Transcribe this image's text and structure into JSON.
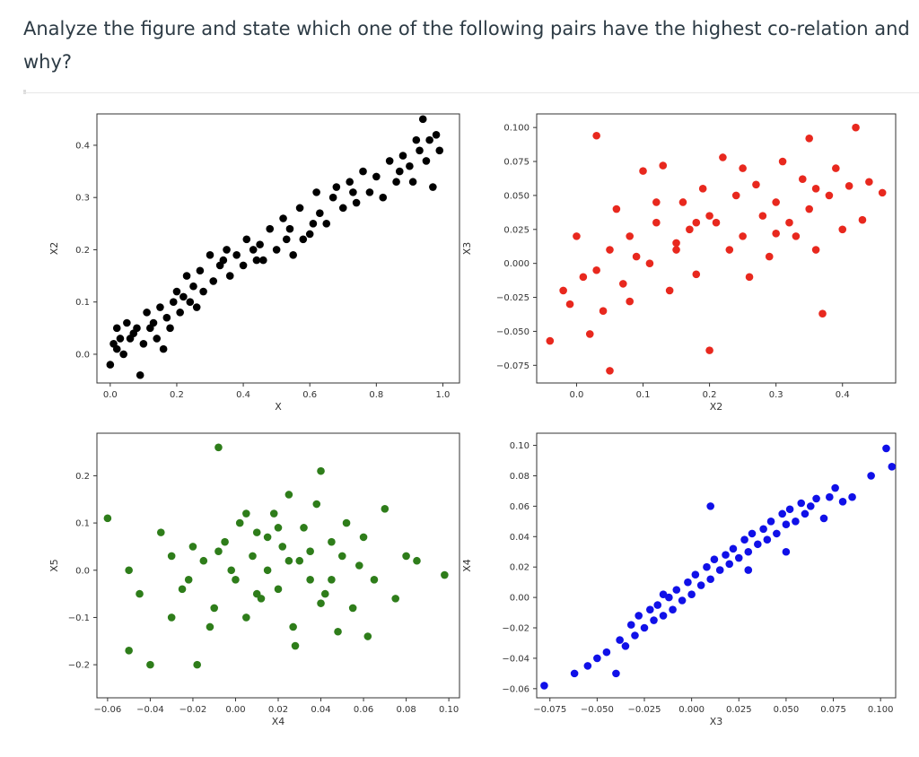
{
  "question": {
    "text": "Analyze the figure and state which one of the following pairs have the highest co-relation and why?"
  },
  "colors": {
    "panel1": "#000000",
    "panel2": "#e8281e",
    "panel3": "#2e7d1a",
    "panel4": "#1010e8",
    "frame": "#333333"
  },
  "chart_data": [
    {
      "type": "scatter",
      "xlabel": "X",
      "ylabel": "X2",
      "xlim": [
        -0.04,
        1.05
      ],
      "ylim": [
        -0.055,
        0.46
      ],
      "xticks": [
        "0.0",
        "0.2",
        "0.4",
        "0.6",
        "0.8",
        "1.0"
      ],
      "yticks": [
        "0.0",
        "0.1",
        "0.2",
        "0.3",
        "0.4"
      ],
      "color": "#000000",
      "points": [
        [
          0.0,
          -0.02
        ],
        [
          0.01,
          0.02
        ],
        [
          0.02,
          0.05
        ],
        [
          0.03,
          0.03
        ],
        [
          0.04,
          0.0
        ],
        [
          0.05,
          0.06
        ],
        [
          0.06,
          0.03
        ],
        [
          0.08,
          0.05
        ],
        [
          0.09,
          -0.04
        ],
        [
          0.1,
          0.02
        ],
        [
          0.11,
          0.08
        ],
        [
          0.12,
          0.05
        ],
        [
          0.13,
          0.06
        ],
        [
          0.14,
          0.03
        ],
        [
          0.15,
          0.09
        ],
        [
          0.16,
          0.01
        ],
        [
          0.17,
          0.07
        ],
        [
          0.19,
          0.1
        ],
        [
          0.2,
          0.12
        ],
        [
          0.21,
          0.08
        ],
        [
          0.22,
          0.11
        ],
        [
          0.23,
          0.15
        ],
        [
          0.25,
          0.13
        ],
        [
          0.26,
          0.09
        ],
        [
          0.27,
          0.16
        ],
        [
          0.28,
          0.12
        ],
        [
          0.3,
          0.19
        ],
        [
          0.31,
          0.14
        ],
        [
          0.33,
          0.17
        ],
        [
          0.35,
          0.2
        ],
        [
          0.36,
          0.15
        ],
        [
          0.38,
          0.19
        ],
        [
          0.4,
          0.17
        ],
        [
          0.41,
          0.22
        ],
        [
          0.43,
          0.2
        ],
        [
          0.45,
          0.21
        ],
        [
          0.46,
          0.18
        ],
        [
          0.48,
          0.24
        ],
        [
          0.5,
          0.2
        ],
        [
          0.52,
          0.26
        ],
        [
          0.54,
          0.24
        ],
        [
          0.55,
          0.19
        ],
        [
          0.57,
          0.28
        ],
        [
          0.58,
          0.22
        ],
        [
          0.6,
          0.23
        ],
        [
          0.62,
          0.31
        ],
        [
          0.63,
          0.27
        ],
        [
          0.65,
          0.25
        ],
        [
          0.67,
          0.3
        ],
        [
          0.68,
          0.32
        ],
        [
          0.7,
          0.28
        ],
        [
          0.72,
          0.33
        ],
        [
          0.74,
          0.29
        ],
        [
          0.76,
          0.35
        ],
        [
          0.78,
          0.31
        ],
        [
          0.8,
          0.34
        ],
        [
          0.82,
          0.3
        ],
        [
          0.84,
          0.37
        ],
        [
          0.86,
          0.33
        ],
        [
          0.88,
          0.38
        ],
        [
          0.9,
          0.36
        ],
        [
          0.91,
          0.33
        ],
        [
          0.93,
          0.39
        ],
        [
          0.94,
          0.45
        ],
        [
          0.95,
          0.37
        ],
        [
          0.96,
          0.41
        ],
        [
          0.97,
          0.32
        ],
        [
          0.98,
          0.42
        ],
        [
          0.99,
          0.39
        ],
        [
          0.92,
          0.41
        ],
        [
          0.87,
          0.35
        ],
        [
          0.73,
          0.31
        ],
        [
          0.61,
          0.25
        ],
        [
          0.53,
          0.22
        ],
        [
          0.44,
          0.18
        ],
        [
          0.34,
          0.18
        ],
        [
          0.24,
          0.1
        ],
        [
          0.18,
          0.05
        ],
        [
          0.07,
          0.04
        ],
        [
          0.02,
          0.01
        ]
      ]
    },
    {
      "type": "scatter",
      "xlabel": "X2",
      "ylabel": "X3",
      "xlim": [
        -0.06,
        0.48
      ],
      "ylim": [
        -0.088,
        0.11
      ],
      "xticks": [
        "0.0",
        "0.1",
        "0.2",
        "0.3",
        "0.4"
      ],
      "yticks": [
        "0.100",
        "0.075",
        "0.050",
        "0.025",
        "0.000",
        "−0.025",
        "−0.050",
        "−0.075"
      ],
      "color": "#e8281e",
      "points": [
        [
          -0.04,
          -0.057
        ],
        [
          -0.02,
          -0.02
        ],
        [
          -0.01,
          -0.03
        ],
        [
          0.0,
          0.02
        ],
        [
          0.01,
          -0.01
        ],
        [
          0.02,
          -0.052
        ],
        [
          0.03,
          0.094
        ],
        [
          0.04,
          -0.035
        ],
        [
          0.05,
          -0.079
        ],
        [
          0.05,
          0.01
        ],
        [
          0.06,
          0.04
        ],
        [
          0.07,
          -0.015
        ],
        [
          0.08,
          0.02
        ],
        [
          0.09,
          0.005
        ],
        [
          0.1,
          0.068
        ],
        [
          0.11,
          0.0
        ],
        [
          0.12,
          0.03
        ],
        [
          0.13,
          0.072
        ],
        [
          0.14,
          -0.02
        ],
        [
          0.15,
          0.015
        ],
        [
          0.16,
          0.045
        ],
        [
          0.17,
          0.025
        ],
        [
          0.18,
          -0.008
        ],
        [
          0.19,
          0.055
        ],
        [
          0.2,
          -0.064
        ],
        [
          0.21,
          0.03
        ],
        [
          0.22,
          0.078
        ],
        [
          0.23,
          0.01
        ],
        [
          0.24,
          0.05
        ],
        [
          0.25,
          0.02
        ],
        [
          0.26,
          -0.01
        ],
        [
          0.27,
          0.058
        ],
        [
          0.28,
          0.035
        ],
        [
          0.29,
          0.005
        ],
        [
          0.3,
          0.045
        ],
        [
          0.31,
          0.075
        ],
        [
          0.32,
          0.03
        ],
        [
          0.33,
          0.02
        ],
        [
          0.34,
          0.062
        ],
        [
          0.35,
          0.04
        ],
        [
          0.36,
          0.01
        ],
        [
          0.37,
          -0.037
        ],
        [
          0.38,
          0.05
        ],
        [
          0.39,
          0.07
        ],
        [
          0.4,
          0.025
        ],
        [
          0.41,
          0.057
        ],
        [
          0.42,
          0.1
        ],
        [
          0.44,
          0.06
        ],
        [
          0.46,
          0.052
        ],
        [
          0.43,
          0.032
        ],
        [
          0.35,
          0.092
        ],
        [
          0.3,
          0.022
        ],
        [
          0.25,
          0.07
        ],
        [
          0.18,
          0.03
        ],
        [
          0.12,
          0.045
        ],
        [
          0.08,
          -0.028
        ],
        [
          0.03,
          -0.005
        ],
        [
          0.15,
          0.01
        ],
        [
          0.2,
          0.035
        ],
        [
          0.36,
          0.055
        ]
      ]
    },
    {
      "type": "scatter",
      "xlabel": "X4",
      "ylabel": "X5",
      "xlim": [
        -0.065,
        0.105
      ],
      "ylim": [
        -0.27,
        0.29
      ],
      "xticks": [
        "−0.06",
        "−0.04",
        "−0.02",
        "0.00",
        "0.02",
        "0.04",
        "0.06",
        "0.08",
        "0.10"
      ],
      "yticks": [
        "0.2",
        "0.1",
        "0.0",
        "−0.1",
        "−0.2"
      ],
      "color": "#2e7d1a",
      "points": [
        [
          -0.06,
          0.11
        ],
        [
          -0.05,
          0.0
        ],
        [
          -0.05,
          -0.17
        ],
        [
          -0.045,
          -0.05
        ],
        [
          -0.04,
          -0.2
        ],
        [
          -0.035,
          0.08
        ],
        [
          -0.03,
          -0.1
        ],
        [
          -0.025,
          -0.04
        ],
        [
          -0.02,
          0.05
        ],
        [
          -0.018,
          -0.2
        ],
        [
          -0.015,
          0.02
        ],
        [
          -0.01,
          -0.08
        ],
        [
          -0.008,
          0.26
        ],
        [
          -0.005,
          0.06
        ],
        [
          0.0,
          -0.02
        ],
        [
          0.002,
          0.1
        ],
        [
          0.005,
          -0.1
        ],
        [
          0.008,
          0.03
        ],
        [
          0.01,
          0.08
        ],
        [
          0.012,
          -0.06
        ],
        [
          0.015,
          0.0
        ],
        [
          0.018,
          0.12
        ],
        [
          0.02,
          -0.04
        ],
        [
          0.022,
          0.05
        ],
        [
          0.025,
          0.16
        ],
        [
          0.027,
          -0.12
        ],
        [
          0.03,
          0.02
        ],
        [
          0.032,
          0.09
        ],
        [
          0.035,
          -0.02
        ],
        [
          0.038,
          0.14
        ],
        [
          0.04,
          0.21
        ],
        [
          0.042,
          -0.05
        ],
        [
          0.045,
          0.06
        ],
        [
          0.048,
          -0.13
        ],
        [
          0.05,
          0.03
        ],
        [
          0.052,
          0.1
        ],
        [
          0.055,
          -0.08
        ],
        [
          0.058,
          0.01
        ],
        [
          0.06,
          0.07
        ],
        [
          0.065,
          -0.02
        ],
        [
          0.07,
          0.13
        ],
        [
          0.075,
          -0.06
        ],
        [
          0.08,
          0.03
        ],
        [
          0.085,
          0.02
        ],
        [
          0.098,
          -0.01
        ],
        [
          -0.03,
          0.03
        ],
        [
          -0.012,
          -0.12
        ],
        [
          0.028,
          -0.16
        ],
        [
          0.015,
          0.07
        ],
        [
          0.035,
          0.04
        ],
        [
          0.045,
          -0.02
        ],
        [
          -0.002,
          0.0
        ],
        [
          0.01,
          -0.05
        ],
        [
          0.025,
          0.02
        ],
        [
          0.005,
          0.12
        ],
        [
          0.062,
          -0.14
        ],
        [
          -0.022,
          -0.02
        ],
        [
          0.04,
          -0.07
        ],
        [
          0.02,
          0.09
        ],
        [
          -0.008,
          0.04
        ]
      ]
    },
    {
      "type": "scatter",
      "xlabel": "X3",
      "ylabel": "X4",
      "xlim": [
        -0.082,
        0.108
      ],
      "ylim": [
        -0.066,
        0.108
      ],
      "xticks": [
        "−0.075",
        "−0.050",
        "−0.025",
        "0.000",
        "0.025",
        "0.050",
        "0.075",
        "0.100"
      ],
      "yticks": [
        "0.10",
        "0.08",
        "0.06",
        "0.04",
        "0.02",
        "0.00",
        "−0.02",
        "−0.04",
        "−0.06"
      ],
      "color": "#1010e8",
      "points": [
        [
          -0.078,
          -0.058
        ],
        [
          -0.062,
          -0.05
        ],
        [
          -0.055,
          -0.045
        ],
        [
          -0.05,
          -0.04
        ],
        [
          -0.045,
          -0.036
        ],
        [
          -0.04,
          -0.05
        ],
        [
          -0.038,
          -0.028
        ],
        [
          -0.035,
          -0.032
        ],
        [
          -0.032,
          -0.018
        ],
        [
          -0.03,
          -0.025
        ],
        [
          -0.028,
          -0.012
        ],
        [
          -0.025,
          -0.02
        ],
        [
          -0.022,
          -0.008
        ],
        [
          -0.02,
          -0.015
        ],
        [
          -0.018,
          -0.005
        ],
        [
          -0.015,
          -0.012
        ],
        [
          -0.012,
          0.0
        ],
        [
          -0.01,
          -0.008
        ],
        [
          -0.008,
          0.005
        ],
        [
          -0.005,
          -0.002
        ],
        [
          -0.002,
          0.01
        ],
        [
          0.0,
          0.002
        ],
        [
          0.002,
          0.015
        ],
        [
          0.005,
          0.008
        ],
        [
          0.008,
          0.02
        ],
        [
          0.01,
          0.012
        ],
        [
          0.012,
          0.025
        ],
        [
          0.015,
          0.018
        ],
        [
          0.018,
          0.028
        ],
        [
          0.02,
          0.022
        ],
        [
          0.022,
          0.032
        ],
        [
          0.025,
          0.026
        ],
        [
          0.028,
          0.038
        ],
        [
          0.03,
          0.03
        ],
        [
          0.032,
          0.042
        ],
        [
          0.035,
          0.035
        ],
        [
          0.038,
          0.045
        ],
        [
          0.04,
          0.038
        ],
        [
          0.042,
          0.05
        ],
        [
          0.045,
          0.042
        ],
        [
          0.048,
          0.055
        ],
        [
          0.05,
          0.048
        ],
        [
          0.052,
          0.058
        ],
        [
          0.055,
          0.05
        ],
        [
          0.058,
          0.062
        ],
        [
          0.06,
          0.055
        ],
        [
          0.063,
          0.06
        ],
        [
          0.066,
          0.065
        ],
        [
          0.07,
          0.052
        ],
        [
          0.073,
          0.066
        ],
        [
          0.076,
          0.072
        ],
        [
          0.08,
          0.063
        ],
        [
          0.085,
          0.066
        ],
        [
          0.095,
          0.08
        ],
        [
          0.103,
          0.098
        ],
        [
          0.106,
          0.086
        ],
        [
          0.01,
          0.06
        ],
        [
          -0.015,
          0.002
        ],
        [
          0.03,
          0.018
        ],
        [
          0.05,
          0.03
        ]
      ]
    }
  ]
}
